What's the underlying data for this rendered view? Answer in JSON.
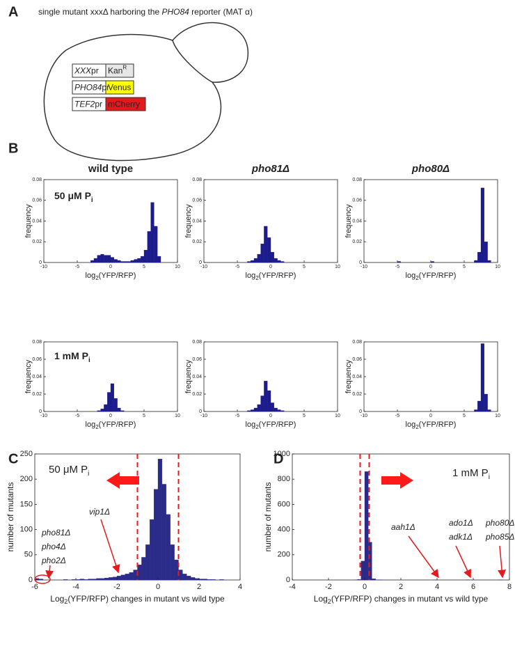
{
  "panel_labels": [
    "A",
    "B",
    "C",
    "D"
  ],
  "panel_a": {
    "caption": [
      "single mutant xxxΔ harboring the ",
      "PHO84",
      " reporter (MAT α)"
    ],
    "constructs": [
      {
        "promoter": [
          "XXX",
          "pr"
        ],
        "gene": [
          "Kan",
          "R"
        ],
        "color": "#e6e6e6"
      },
      {
        "promoter": [
          "PHO84",
          "pr"
        ],
        "gene": [
          "Venus"
        ],
        "color": "#ffff00"
      },
      {
        "promoter": [
          "TEF2",
          "pr"
        ],
        "gene": [
          "mCherry"
        ],
        "color": "#e31a1c"
      }
    ]
  },
  "chart_data": [
    {
      "type": "histogram",
      "title": "wild type",
      "condition": {
        "text": "50 μM P",
        "subscript": "i"
      },
      "xlabel": {
        "text": "log",
        "subscript": "2",
        "suffix": "(YFP/RFP)"
      },
      "ylabel": "frequency",
      "color": "#1c1c8c",
      "bins": [
        -10,
        -9.5,
        -9,
        -8.5,
        -8,
        -7.5,
        -7,
        -6.5,
        -6,
        -5.5,
        -5,
        -4.5,
        -4,
        -3.5,
        -3,
        -2.5,
        -2,
        -1.5,
        -1,
        -0.5,
        0,
        0.5,
        1,
        1.5,
        2,
        2.5,
        3,
        3.5,
        4,
        4.5,
        5,
        5.5,
        6,
        6.5,
        7,
        7.5,
        8,
        8.5,
        9,
        9.5,
        10
      ],
      "counts": [
        0,
        0,
        0,
        0,
        0,
        0,
        0,
        0,
        0,
        0,
        0,
        0,
        0,
        0,
        0.002,
        0.004,
        0.007,
        0.008,
        0.007,
        0.007,
        0.005,
        0.003,
        0.002,
        0.001,
        0.001,
        0.001,
        0.002,
        0.003,
        0.004,
        0.006,
        0.012,
        0.03,
        0.058,
        0.035,
        0.006,
        0,
        0,
        0,
        0,
        0
      ],
      "xlim": [
        -10,
        10
      ],
      "xticks": [
        -10,
        -5,
        0,
        5,
        10
      ],
      "ylim": [
        0,
        0.08
      ],
      "yticks": [
        0,
        0.02,
        0.04,
        0.06,
        0.08
      ]
    },
    {
      "type": "histogram",
      "title": "pho81Δ",
      "xlabel": {
        "text": "log",
        "subscript": "2",
        "suffix": "(YFP/RFP)"
      },
      "ylabel": "frequency",
      "color": "#1c1c8c",
      "bins": [
        -10,
        -9.5,
        -9,
        -8.5,
        -8,
        -7.5,
        -7,
        -6.5,
        -6,
        -5.5,
        -5,
        -4.5,
        -4,
        -3.5,
        -3,
        -2.5,
        -2,
        -1.5,
        -1,
        -0.5,
        0,
        0.5,
        1,
        1.5,
        2,
        2.5,
        3,
        3.5,
        4,
        4.5,
        5,
        5.5,
        6,
        6.5,
        7,
        7.5,
        8,
        8.5,
        9,
        9.5,
        10
      ],
      "counts": [
        0,
        0,
        0,
        0,
        0,
        0,
        0,
        0,
        0,
        0,
        0,
        0,
        0,
        0.001,
        0.002,
        0.004,
        0.008,
        0.018,
        0.035,
        0.024,
        0.01,
        0.004,
        0.002,
        0.001,
        0,
        0,
        0,
        0,
        0,
        0,
        0,
        0,
        0,
        0,
        0,
        0,
        0,
        0,
        0,
        0
      ],
      "xlim": [
        -10,
        10
      ],
      "xticks": [
        -10,
        -5,
        0,
        5,
        10
      ],
      "ylim": [
        0,
        0.08
      ],
      "yticks": [
        0,
        0.02,
        0.04,
        0.06,
        0.08
      ]
    },
    {
      "type": "histogram",
      "title": "pho80Δ",
      "xlabel": {
        "text": "log",
        "subscript": "2",
        "suffix": "(YFP/RFP)"
      },
      "ylabel": "frequency",
      "color": "#1c1c8c",
      "bins": [
        -10,
        -9.5,
        -9,
        -8.5,
        -8,
        -7.5,
        -7,
        -6.5,
        -6,
        -5.5,
        -5,
        -4.5,
        -4,
        -3.5,
        -3,
        -2.5,
        -2,
        -1.5,
        -1,
        -0.5,
        0,
        0.5,
        1,
        1.5,
        2,
        2.5,
        3,
        3.5,
        4,
        4.5,
        5,
        5.5,
        6,
        6.5,
        7,
        7.5,
        8,
        8.5,
        9,
        9.5,
        10
      ],
      "counts": [
        0,
        0,
        0,
        0,
        0,
        0,
        0,
        0,
        0,
        0,
        0.001,
        0,
        0,
        0,
        0,
        0,
        0,
        0,
        0,
        0,
        0.001,
        0,
        0,
        0,
        0,
        0,
        0,
        0,
        0,
        0,
        0,
        0,
        0,
        0.002,
        0.01,
        0.072,
        0.02,
        0.002,
        0,
        0
      ],
      "xlim": [
        -10,
        10
      ],
      "xticks": [
        -10,
        -5,
        0,
        5,
        10
      ],
      "ylim": [
        0,
        0.08
      ],
      "yticks": [
        0,
        0.02,
        0.04,
        0.06,
        0.08
      ]
    },
    {
      "type": "histogram",
      "condition": {
        "text": "1 mM P",
        "subscript": "i"
      },
      "xlabel": {
        "text": "log",
        "subscript": "2",
        "suffix": "(YFP/RFP)"
      },
      "ylabel": "frequency",
      "color": "#1c1c8c",
      "bins": [
        -10,
        -9.5,
        -9,
        -8.5,
        -8,
        -7.5,
        -7,
        -6.5,
        -6,
        -5.5,
        -5,
        -4.5,
        -4,
        -3.5,
        -3,
        -2.5,
        -2,
        -1.5,
        -1,
        -0.5,
        0,
        0.5,
        1,
        1.5,
        2,
        2.5,
        3,
        3.5,
        4,
        4.5,
        5,
        5.5,
        6,
        6.5,
        7,
        7.5,
        8,
        8.5,
        9,
        9.5,
        10
      ],
      "counts": [
        0,
        0,
        0,
        0,
        0,
        0,
        0,
        0,
        0,
        0,
        0,
        0,
        0,
        0,
        0,
        0,
        0.001,
        0.003,
        0.008,
        0.022,
        0.032,
        0.015,
        0.004,
        0.001,
        0,
        0,
        0,
        0,
        0,
        0,
        0,
        0,
        0,
        0,
        0,
        0,
        0,
        0,
        0,
        0
      ],
      "xlim": [
        -10,
        10
      ],
      "xticks": [
        -10,
        -5,
        0,
        5,
        10
      ],
      "ylim": [
        0,
        0.08
      ],
      "yticks": [
        0,
        0.02,
        0.04,
        0.06,
        0.08
      ]
    },
    {
      "type": "histogram",
      "xlabel": {
        "text": "log",
        "subscript": "2",
        "suffix": "(YFP/RFP)"
      },
      "ylabel": "frequency",
      "color": "#1c1c8c",
      "bins": [
        -10,
        -9.5,
        -9,
        -8.5,
        -8,
        -7.5,
        -7,
        -6.5,
        -6,
        -5.5,
        -5,
        -4.5,
        -4,
        -3.5,
        -3,
        -2.5,
        -2,
        -1.5,
        -1,
        -0.5,
        0,
        0.5,
        1,
        1.5,
        2,
        2.5,
        3,
        3.5,
        4,
        4.5,
        5,
        5.5,
        6,
        6.5,
        7,
        7.5,
        8,
        8.5,
        9,
        9.5,
        10
      ],
      "counts": [
        0,
        0,
        0,
        0,
        0,
        0,
        0,
        0,
        0,
        0,
        0,
        0,
        0,
        0.001,
        0.002,
        0.004,
        0.008,
        0.018,
        0.035,
        0.024,
        0.01,
        0.004,
        0.002,
        0.001,
        0,
        0,
        0,
        0,
        0,
        0,
        0,
        0,
        0,
        0,
        0,
        0,
        0,
        0,
        0,
        0
      ],
      "xlim": [
        -10,
        10
      ],
      "xticks": [
        -10,
        -5,
        0,
        5,
        10
      ],
      "ylim": [
        0,
        0.08
      ],
      "yticks": [
        0,
        0.02,
        0.04,
        0.06,
        0.08
      ]
    },
    {
      "type": "histogram",
      "xlabel": {
        "text": "log",
        "subscript": "2",
        "suffix": "(YFP/RFP)"
      },
      "ylabel": "frequency",
      "color": "#1c1c8c",
      "bins": [
        -10,
        -9.5,
        -9,
        -8.5,
        -8,
        -7.5,
        -7,
        -6.5,
        -6,
        -5.5,
        -5,
        -4.5,
        -4,
        -3.5,
        -3,
        -2.5,
        -2,
        -1.5,
        -1,
        -0.5,
        0,
        0.5,
        1,
        1.5,
        2,
        2.5,
        3,
        3.5,
        4,
        4.5,
        5,
        5.5,
        6,
        6.5,
        7,
        7.5,
        8,
        8.5,
        9,
        9.5,
        10
      ],
      "counts": [
        0,
        0,
        0,
        0,
        0,
        0,
        0,
        0,
        0,
        0,
        0,
        0,
        0,
        0,
        0,
        0,
        0,
        0,
        0,
        0,
        0,
        0,
        0,
        0,
        0,
        0,
        0,
        0,
        0,
        0,
        0,
        0,
        0,
        0.002,
        0.012,
        0.078,
        0.02,
        0.002,
        0,
        0
      ],
      "xlim": [
        -10,
        10
      ],
      "xticks": [
        -10,
        -5,
        0,
        5,
        10
      ],
      "ylim": [
        0,
        0.08
      ],
      "yticks": [
        0,
        0.02,
        0.04,
        0.06,
        0.08
      ]
    },
    {
      "type": "histogram",
      "condition": {
        "text": "50 μM P",
        "subscript": "i"
      },
      "xlabel": {
        "text": "Log",
        "subscript": "2",
        "suffix": "(YFP/RFP) changes in mutant vs wild type"
      },
      "ylabel": "number of mutants",
      "color": "#2b2b8a",
      "bins": [
        -6,
        -5.8,
        -5.6,
        -5.4,
        -5.2,
        -5,
        -4.8,
        -4.6,
        -4.4,
        -4.2,
        -4,
        -3.8,
        -3.6,
        -3.4,
        -3.2,
        -3,
        -2.8,
        -2.6,
        -2.4,
        -2.2,
        -2,
        -1.8,
        -1.6,
        -1.4,
        -1.2,
        -1,
        -0.8,
        -0.6,
        -0.4,
        -0.2,
        0,
        0.2,
        0.4,
        0.6,
        0.8,
        1,
        1.2,
        1.4,
        1.6,
        1.8,
        2,
        2.2,
        2.4,
        2.6,
        2.8,
        3,
        3.2,
        3.4,
        3.6,
        3.8,
        4
      ],
      "counts": [
        3,
        2,
        0,
        0,
        0,
        0,
        0,
        1,
        0,
        1,
        1,
        2,
        1,
        2,
        2,
        3,
        3,
        4,
        5,
        6,
        8,
        10,
        12,
        15,
        20,
        30,
        45,
        70,
        120,
        180,
        240,
        190,
        130,
        70,
        40,
        20,
        12,
        8,
        5,
        3,
        2,
        2,
        1,
        1,
        0,
        1,
        0,
        0,
        0,
        0
      ],
      "xlim": [
        -6,
        4
      ],
      "xticks": [
        -6,
        -4,
        -2,
        0,
        2,
        4
      ],
      "ylim": [
        0,
        250
      ],
      "yticks": [
        0,
        50,
        100,
        150,
        200,
        250
      ],
      "vlines": [
        -1,
        1
      ],
      "vline_color": "#e41a1c",
      "annotations": [
        {
          "lines": [
            "pho81Δ",
            "pho4Δ",
            "pho2Δ"
          ],
          "color": "#333333"
        },
        {
          "lines": [
            "vip1Δ"
          ],
          "color": "#333333"
        }
      ]
    },
    {
      "type": "histogram",
      "condition": {
        "text": "1 mM P",
        "subscript": "i"
      },
      "xlabel": {
        "text": "Log",
        "subscript": "2",
        "suffix": "(YFP/RFP) changes in mutant vs wild type"
      },
      "ylabel": "number of mutants",
      "color": "#2b2b8a",
      "bins": [
        -4,
        -3.8,
        -3.6,
        -3.4,
        -3.2,
        -3,
        -2.8,
        -2.6,
        -2.4,
        -2.2,
        -2,
        -1.8,
        -1.6,
        -1.4,
        -1.2,
        -1,
        -0.8,
        -0.6,
        -0.4,
        -0.2,
        0,
        0.2,
        0.4,
        0.6,
        0.8,
        1,
        1.2,
        1.4,
        1.6,
        1.8,
        2,
        2.2,
        2.4,
        2.6,
        2.8,
        3,
        3.2,
        3.4,
        3.6,
        3.8,
        4,
        4.2,
        4.4,
        4.6,
        4.8,
        5,
        5.2,
        5.4,
        5.6,
        5.8,
        6,
        6.2,
        6.4,
        6.6,
        6.8,
        7,
        7.2,
        7.4,
        7.6,
        7.8,
        8
      ],
      "counts": [
        0,
        0,
        0,
        0,
        0,
        0,
        0,
        0,
        0,
        0,
        0,
        0,
        0,
        0,
        0,
        0,
        0,
        1,
        5,
        150,
        860,
        300,
        10,
        2,
        1,
        0,
        0,
        0,
        0,
        0,
        0,
        0,
        0,
        0,
        0,
        0,
        0,
        0,
        0,
        1,
        0,
        0,
        0,
        0,
        0,
        0,
        0,
        0,
        1,
        0,
        0,
        0,
        0,
        0,
        0,
        0,
        0,
        1,
        0,
        0
      ],
      "xlim": [
        -4,
        8
      ],
      "xticks": [
        -4,
        -2,
        0,
        2,
        4,
        6,
        8
      ],
      "ylim": [
        0,
        1000
      ],
      "yticks": [
        0,
        200,
        400,
        600,
        800,
        1000
      ],
      "vlines": [
        -0.25,
        0.25
      ],
      "vline_color": "#e41a1c",
      "annotations": [
        {
          "lines": [
            "aah1Δ"
          ],
          "color": "#e41a1c"
        },
        {
          "lines": [
            "ado1Δ",
            "adk1Δ"
          ],
          "color": "#333333"
        },
        {
          "lines": [
            "pho80Δ",
            "pho85Δ"
          ],
          "color": "#333333"
        }
      ]
    }
  ]
}
